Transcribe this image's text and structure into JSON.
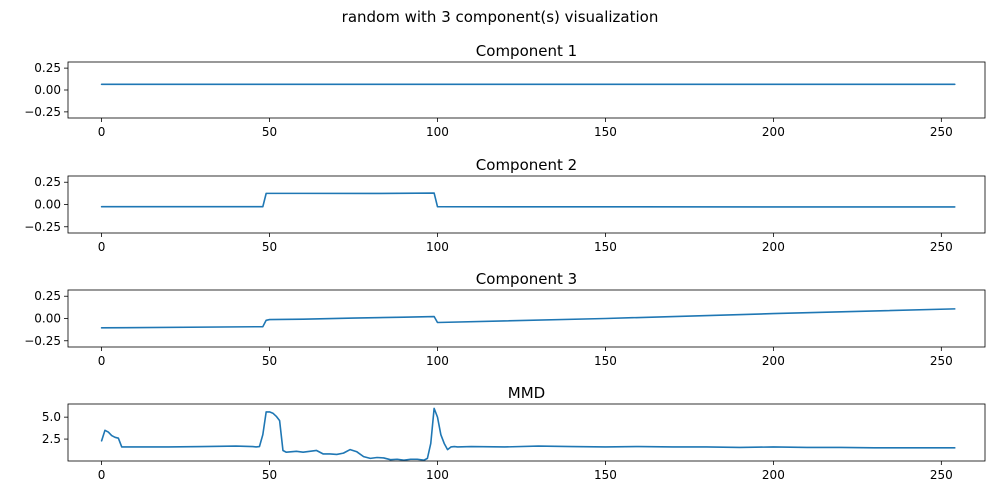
{
  "chart_data": [
    {
      "type": "line",
      "figure_title": "random with 3 component(s) visualization",
      "title": "Component 1",
      "xlim": [
        -10,
        263
      ],
      "ylim": [
        -0.32,
        0.32
      ],
      "xticks": [
        0,
        50,
        100,
        150,
        200,
        250
      ],
      "yticks": [
        0.25,
        0.0,
        -0.25
      ],
      "ytick_labels": [
        "0.25",
        "0.00",
        "−0.25"
      ],
      "color": "#1f77b4",
      "x": [
        0,
        254
      ],
      "y": [
        0.065,
        0.065
      ]
    },
    {
      "type": "line",
      "title": "Component 2",
      "xlim": [
        -10,
        263
      ],
      "ylim": [
        -0.32,
        0.32
      ],
      "xticks": [
        0,
        50,
        100,
        150,
        200,
        250
      ],
      "yticks": [
        0.25,
        0.0,
        -0.25
      ],
      "ytick_labels": [
        "0.25",
        "0.00",
        "−0.25"
      ],
      "color": "#1f77b4",
      "x": [
        0,
        48,
        49,
        60,
        80,
        99,
        100,
        150,
        200,
        254
      ],
      "y": [
        -0.025,
        -0.025,
        0.125,
        0.125,
        0.124,
        0.128,
        -0.025,
        -0.026,
        -0.027,
        -0.027
      ]
    },
    {
      "type": "line",
      "title": "Component 3",
      "xlim": [
        -10,
        263
      ],
      "ylim": [
        -0.32,
        0.32
      ],
      "xticks": [
        0,
        50,
        100,
        150,
        200,
        250
      ],
      "yticks": [
        0.25,
        0.0,
        -0.25
      ],
      "ytick_labels": [
        "0.25",
        "0.00",
        "−0.25"
      ],
      "color": "#1f77b4",
      "x": [
        0,
        48,
        49,
        50,
        60,
        75,
        90,
        99,
        100,
        150,
        200,
        254
      ],
      "y": [
        -0.105,
        -0.092,
        -0.02,
        -0.012,
        -0.008,
        0.005,
        0.015,
        0.022,
        -0.045,
        0.0,
        0.055,
        0.108
      ]
    },
    {
      "type": "line",
      "title": "MMD",
      "xlim": [
        -10,
        263
      ],
      "ylim": [
        0.0,
        6.5
      ],
      "xticks": [
        0,
        50,
        100,
        150,
        200,
        250
      ],
      "yticks": [
        5.0,
        2.5
      ],
      "ytick_labels": [
        "5.0",
        "2.5"
      ],
      "color": "#1f77b4",
      "x": [
        0,
        1,
        2,
        3,
        4,
        5,
        6,
        7,
        10,
        20,
        30,
        40,
        45,
        46,
        47,
        48,
        49,
        50,
        51,
        52,
        53,
        54,
        55,
        58,
        60,
        62,
        64,
        66,
        68,
        70,
        72,
        74,
        76,
        78,
        80,
        82,
        84,
        86,
        88,
        90,
        92,
        94,
        96,
        97,
        98,
        99,
        100,
        101,
        102,
        103,
        104,
        105,
        106,
        110,
        120,
        130,
        140,
        150,
        160,
        170,
        180,
        190,
        200,
        210,
        220,
        230,
        240,
        250,
        254
      ],
      "y": [
        2.3,
        3.5,
        3.3,
        2.9,
        2.7,
        2.6,
        1.6,
        1.6,
        1.6,
        1.6,
        1.65,
        1.7,
        1.65,
        1.6,
        1.65,
        3.0,
        5.6,
        5.6,
        5.45,
        5.1,
        4.6,
        1.2,
        1.0,
        1.1,
        1.0,
        1.1,
        1.2,
        0.8,
        0.8,
        0.75,
        0.9,
        1.3,
        1.05,
        0.5,
        0.3,
        0.4,
        0.35,
        0.15,
        0.2,
        0.1,
        0.2,
        0.2,
        0.1,
        0.3,
        2.0,
        6.0,
        5.0,
        3.0,
        2.0,
        1.3,
        1.6,
        1.65,
        1.6,
        1.65,
        1.6,
        1.7,
        1.65,
        1.6,
        1.65,
        1.6,
        1.6,
        1.55,
        1.6,
        1.55,
        1.55,
        1.5,
        1.5,
        1.5,
        1.5
      ]
    }
  ]
}
